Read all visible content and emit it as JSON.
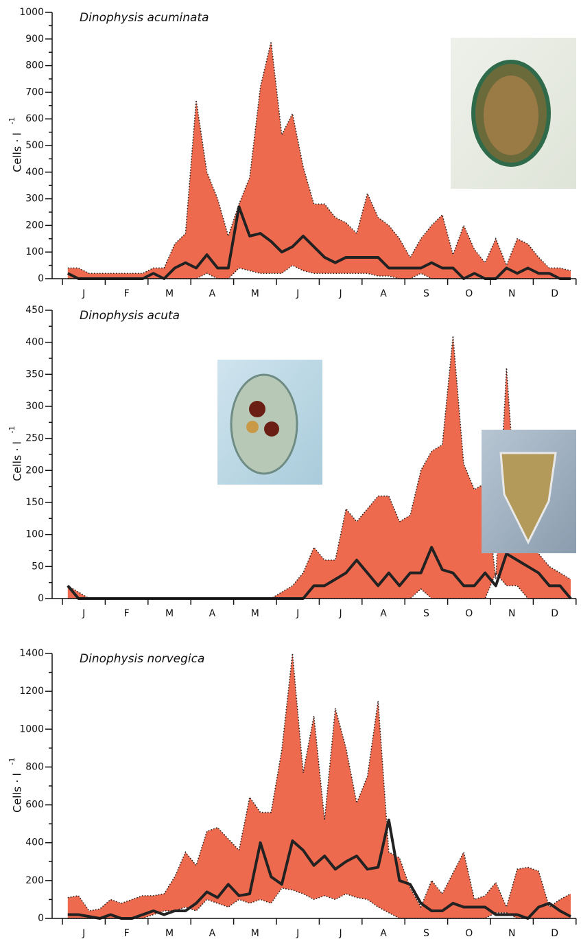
{
  "chart_data": [
    {
      "type": "area_range",
      "title": "Dinophysis acuminata",
      "y_label": "Cells · l",
      "y_label_superscript": "-1",
      "categories": [
        null,
        "J",
        null,
        null,
        null,
        "F",
        null,
        null,
        null,
        "M",
        null,
        null,
        null,
        "A",
        null,
        null,
        null,
        "M",
        null,
        null,
        null,
        "J",
        null,
        null,
        null,
        "J",
        null,
        null,
        null,
        "A",
        null,
        null,
        null,
        "S",
        null,
        null,
        null,
        "O",
        null,
        null,
        null,
        "N",
        null,
        null,
        null,
        "D",
        null,
        null
      ],
      "ylim": [
        0,
        1000
      ],
      "yticks": [
        0,
        100,
        200,
        300,
        400,
        500,
        600,
        700,
        800,
        900,
        1000
      ],
      "upper": {
        "color": "#ee6a4e",
        "values": [
          40,
          40,
          20,
          20,
          20,
          20,
          20,
          20,
          40,
          40,
          130,
          170,
          670,
          400,
          300,
          160,
          280,
          380,
          720,
          890,
          540,
          620,
          420,
          280,
          280,
          230,
          210,
          170,
          320,
          230,
          200,
          150,
          80,
          150,
          200,
          240,
          90,
          200,
          110,
          60,
          150,
          50,
          150,
          130,
          80,
          40,
          40,
          30
        ]
      },
      "lower": {
        "color": "#ee6a4e",
        "values": [
          0,
          0,
          0,
          0,
          0,
          0,
          0,
          0,
          0,
          0,
          0,
          0,
          0,
          20,
          0,
          0,
          40,
          30,
          20,
          20,
          20,
          50,
          30,
          20,
          20,
          20,
          20,
          20,
          20,
          10,
          10,
          0,
          0,
          20,
          0,
          0,
          0,
          0,
          0,
          0,
          0,
          0,
          0,
          0,
          0,
          0,
          0,
          0
        ]
      },
      "median": {
        "color": "#222222",
        "values": [
          20,
          0,
          0,
          0,
          0,
          0,
          0,
          0,
          20,
          0,
          40,
          60,
          40,
          90,
          40,
          40,
          270,
          160,
          170,
          140,
          100,
          120,
          160,
          120,
          80,
          60,
          80,
          80,
          80,
          80,
          40,
          40,
          40,
          40,
          60,
          40,
          40,
          0,
          20,
          0,
          0,
          40,
          20,
          40,
          20,
          20,
          0,
          0
        ]
      }
    },
    {
      "type": "area_range",
      "title": "Dinophysis acuta",
      "y_label": "Cells · l",
      "y_label_superscript": "-1",
      "categories": [
        null,
        "J",
        null,
        null,
        null,
        "F",
        null,
        null,
        null,
        "M",
        null,
        null,
        null,
        "A",
        null,
        null,
        null,
        "M",
        null,
        null,
        null,
        "J",
        null,
        null,
        null,
        "J",
        null,
        null,
        null,
        "A",
        null,
        null,
        null,
        "S",
        null,
        null,
        null,
        "O",
        null,
        null,
        null,
        "N",
        null,
        null,
        null,
        "D",
        null,
        null
      ],
      "ylim": [
        0,
        450
      ],
      "yticks": [
        0,
        50,
        100,
        150,
        200,
        250,
        300,
        350,
        400,
        450
      ],
      "upper": {
        "color": "#ee6a4e",
        "values": [
          20,
          10,
          0,
          0,
          0,
          0,
          0,
          0,
          0,
          0,
          0,
          0,
          0,
          0,
          0,
          0,
          0,
          0,
          0,
          0,
          10,
          20,
          40,
          80,
          60,
          60,
          140,
          120,
          140,
          160,
          160,
          120,
          130,
          200,
          230,
          240,
          410,
          210,
          170,
          180,
          30,
          360,
          120,
          100,
          70,
          50,
          40,
          30
        ]
      },
      "lower": {
        "color": "#ee6a4e",
        "values": [
          0,
          0,
          0,
          0,
          0,
          0,
          0,
          0,
          0,
          0,
          0,
          0,
          0,
          0,
          0,
          0,
          0,
          0,
          0,
          0,
          0,
          0,
          0,
          0,
          0,
          0,
          0,
          0,
          0,
          0,
          0,
          0,
          0,
          15,
          0,
          0,
          0,
          0,
          0,
          0,
          40,
          20,
          20,
          0,
          0,
          0,
          0,
          0
        ]
      },
      "median": {
        "color": "#222222",
        "values": [
          20,
          0,
          0,
          0,
          0,
          0,
          0,
          0,
          0,
          0,
          0,
          0,
          0,
          0,
          0,
          0,
          0,
          0,
          0,
          0,
          0,
          0,
          0,
          20,
          20,
          30,
          40,
          60,
          40,
          20,
          40,
          20,
          40,
          40,
          80,
          45,
          40,
          20,
          20,
          40,
          20,
          70,
          60,
          50,
          40,
          20,
          20,
          0
        ]
      }
    },
    {
      "type": "area_range",
      "title": "Dinophysis norvegica",
      "y_label": "Cells · l",
      "y_label_superscript": "-1",
      "categories": [
        null,
        "J",
        null,
        null,
        null,
        "F",
        null,
        null,
        null,
        "M",
        null,
        null,
        null,
        "A",
        null,
        null,
        null,
        "M",
        null,
        null,
        null,
        "J",
        null,
        null,
        null,
        "J",
        null,
        null,
        null,
        "A",
        null,
        null,
        null,
        "S",
        null,
        null,
        null,
        "O",
        null,
        null,
        null,
        "N",
        null,
        null,
        null,
        "D",
        null,
        null
      ],
      "ylim": [
        0,
        1400
      ],
      "yticks": [
        0,
        200,
        400,
        600,
        800,
        1000,
        1200,
        1400
      ],
      "upper": {
        "color": "#ee6a4e",
        "values": [
          110,
          120,
          40,
          50,
          100,
          80,
          100,
          120,
          120,
          130,
          220,
          350,
          280,
          460,
          480,
          420,
          360,
          640,
          560,
          560,
          890,
          1400,
          770,
          1070,
          520,
          1110,
          900,
          610,
          750,
          1150,
          350,
          320,
          160,
          60,
          200,
          130,
          240,
          350,
          100,
          120,
          190,
          60,
          260,
          270,
          250,
          60,
          100,
          130
        ]
      },
      "lower": {
        "color": "#ee6a4e",
        "values": [
          0,
          0,
          0,
          0,
          0,
          0,
          0,
          0,
          20,
          40,
          40,
          60,
          40,
          100,
          80,
          60,
          100,
          80,
          100,
          80,
          160,
          150,
          130,
          100,
          120,
          100,
          130,
          110,
          100,
          60,
          30,
          0,
          0,
          0,
          0,
          0,
          0,
          0,
          0,
          0,
          30,
          30,
          0,
          0,
          0,
          0,
          0,
          0
        ]
      },
      "median": {
        "color": "#222222",
        "values": [
          20,
          20,
          10,
          0,
          20,
          0,
          0,
          20,
          40,
          20,
          40,
          40,
          80,
          140,
          110,
          180,
          120,
          130,
          400,
          220,
          180,
          410,
          360,
          280,
          330,
          260,
          300,
          330,
          260,
          270,
          520,
          200,
          180,
          80,
          40,
          40,
          80,
          60,
          60,
          60,
          20,
          20,
          20,
          0,
          60,
          80,
          40,
          10
        ]
      }
    }
  ]
}
